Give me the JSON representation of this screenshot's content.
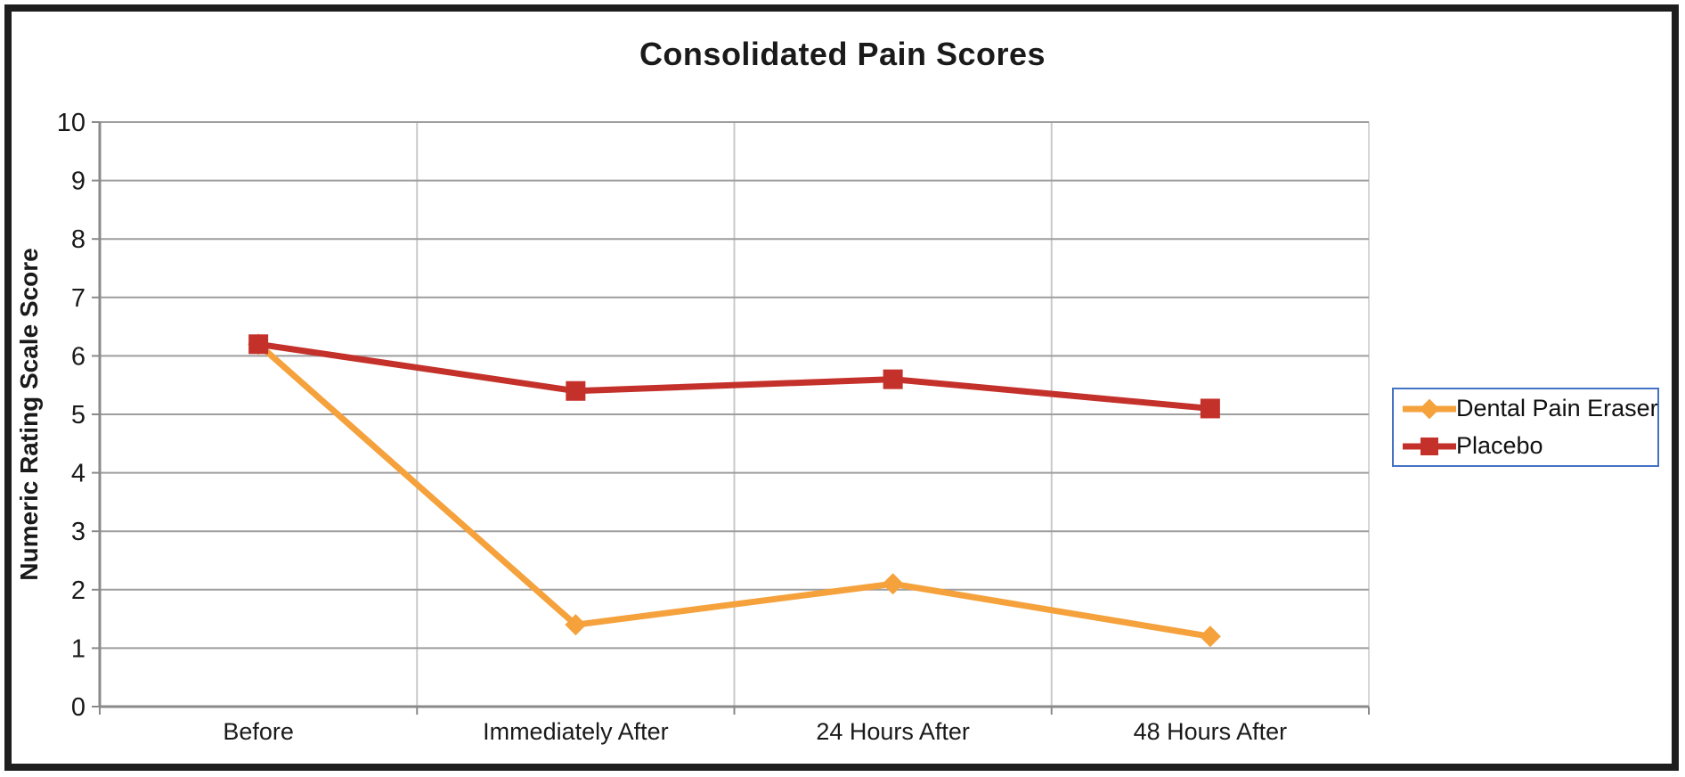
{
  "chart_data": {
    "type": "line",
    "title": "Consolidated Pain Scores",
    "xlabel": "",
    "ylabel": "Numeric Rating Scale Score",
    "categories": [
      "Before",
      "Immediately After",
      "24 Hours After",
      "48 Hours After"
    ],
    "series": [
      {
        "name": "Dental Pain Eraser",
        "values": [
          6.2,
          1.4,
          2.1,
          1.2
        ],
        "color": "#F5A13C",
        "marker": "diamond"
      },
      {
        "name": "Placebo",
        "values": [
          6.2,
          5.4,
          5.6,
          5.1
        ],
        "color": "#C4312B",
        "marker": "square"
      }
    ],
    "ylim": [
      0,
      10
    ],
    "yticks": [
      0,
      1,
      2,
      3,
      4,
      5,
      6,
      7,
      8,
      9,
      10
    ],
    "grid": true,
    "legend_position": "right",
    "legend_border_color": "#4472C4"
  }
}
